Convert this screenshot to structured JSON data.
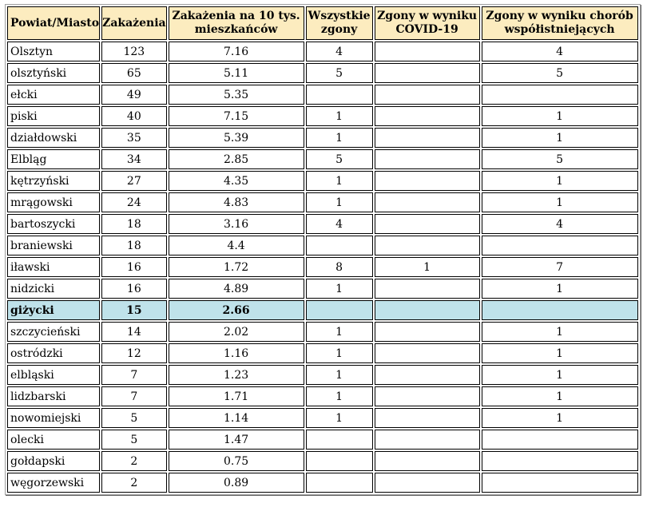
{
  "table": {
    "headers": [
      "Powiat/Miasto",
      "Zakażenia",
      "Zakażenia na 10 tys. mieszkańców",
      "Wszystkie zgony",
      "Zgony w wyniku COVID-19",
      "Zgony w wyniku chorób współistniejących"
    ],
    "rows": [
      {
        "name": "Olsztyn",
        "cases": "123",
        "per10k": "7.16",
        "all_deaths": "4",
        "covid_deaths": "",
        "comorb_deaths": "4",
        "highlight": false
      },
      {
        "name": "olsztyński",
        "cases": "65",
        "per10k": "5.11",
        "all_deaths": "5",
        "covid_deaths": "",
        "comorb_deaths": "5",
        "highlight": false
      },
      {
        "name": "ełcki",
        "cases": "49",
        "per10k": "5.35",
        "all_deaths": "",
        "covid_deaths": "",
        "comorb_deaths": "",
        "highlight": false
      },
      {
        "name": "piski",
        "cases": "40",
        "per10k": "7.15",
        "all_deaths": "1",
        "covid_deaths": "",
        "comorb_deaths": "1",
        "highlight": false
      },
      {
        "name": "działdowski",
        "cases": "35",
        "per10k": "5.39",
        "all_deaths": "1",
        "covid_deaths": "",
        "comorb_deaths": "1",
        "highlight": false
      },
      {
        "name": "Elbląg",
        "cases": "34",
        "per10k": "2.85",
        "all_deaths": "5",
        "covid_deaths": "",
        "comorb_deaths": "5",
        "highlight": false
      },
      {
        "name": "kętrzyński",
        "cases": "27",
        "per10k": "4.35",
        "all_deaths": "1",
        "covid_deaths": "",
        "comorb_deaths": "1",
        "highlight": false
      },
      {
        "name": "mrągowski",
        "cases": "24",
        "per10k": "4.83",
        "all_deaths": "1",
        "covid_deaths": "",
        "comorb_deaths": "1",
        "highlight": false
      },
      {
        "name": "bartoszycki",
        "cases": "18",
        "per10k": "3.16",
        "all_deaths": "4",
        "covid_deaths": "",
        "comorb_deaths": "4",
        "highlight": false
      },
      {
        "name": "braniewski",
        "cases": "18",
        "per10k": "4.4",
        "all_deaths": "",
        "covid_deaths": "",
        "comorb_deaths": "",
        "highlight": false
      },
      {
        "name": "iławski",
        "cases": "16",
        "per10k": "1.72",
        "all_deaths": "8",
        "covid_deaths": "1",
        "comorb_deaths": "7",
        "highlight": false
      },
      {
        "name": "nidzicki",
        "cases": "16",
        "per10k": "4.89",
        "all_deaths": "1",
        "covid_deaths": "",
        "comorb_deaths": "1",
        "highlight": false
      },
      {
        "name": "giżycki",
        "cases": "15",
        "per10k": "2.66",
        "all_deaths": "",
        "covid_deaths": "",
        "comorb_deaths": "",
        "highlight": true
      },
      {
        "name": "szczycieński",
        "cases": "14",
        "per10k": "2.02",
        "all_deaths": "1",
        "covid_deaths": "",
        "comorb_deaths": "1",
        "highlight": false
      },
      {
        "name": "ostródzki",
        "cases": "12",
        "per10k": "1.16",
        "all_deaths": "1",
        "covid_deaths": "",
        "comorb_deaths": "1",
        "highlight": false
      },
      {
        "name": "elbląski",
        "cases": "7",
        "per10k": "1.23",
        "all_deaths": "1",
        "covid_deaths": "",
        "comorb_deaths": "1",
        "highlight": false
      },
      {
        "name": "lidzbarski",
        "cases": "7",
        "per10k": "1.71",
        "all_deaths": "1",
        "covid_deaths": "",
        "comorb_deaths": "1",
        "highlight": false
      },
      {
        "name": "nowomiejski",
        "cases": "5",
        "per10k": "1.14",
        "all_deaths": "1",
        "covid_deaths": "",
        "comorb_deaths": "1",
        "highlight": false
      },
      {
        "name": "olecki",
        "cases": "5",
        "per10k": "1.47",
        "all_deaths": "",
        "covid_deaths": "",
        "comorb_deaths": "",
        "highlight": false
      },
      {
        "name": "gołdapski",
        "cases": "2",
        "per10k": "0.75",
        "all_deaths": "",
        "covid_deaths": "",
        "comorb_deaths": "",
        "highlight": false
      },
      {
        "name": "węgorzewski",
        "cases": "2",
        "per10k": "0.89",
        "all_deaths": "",
        "covid_deaths": "",
        "comorb_deaths": "",
        "highlight": false
      }
    ]
  },
  "colors": {
    "header_background": "#fcecbf",
    "highlight_row_background": "#bfe2ea",
    "border": "#000000"
  }
}
